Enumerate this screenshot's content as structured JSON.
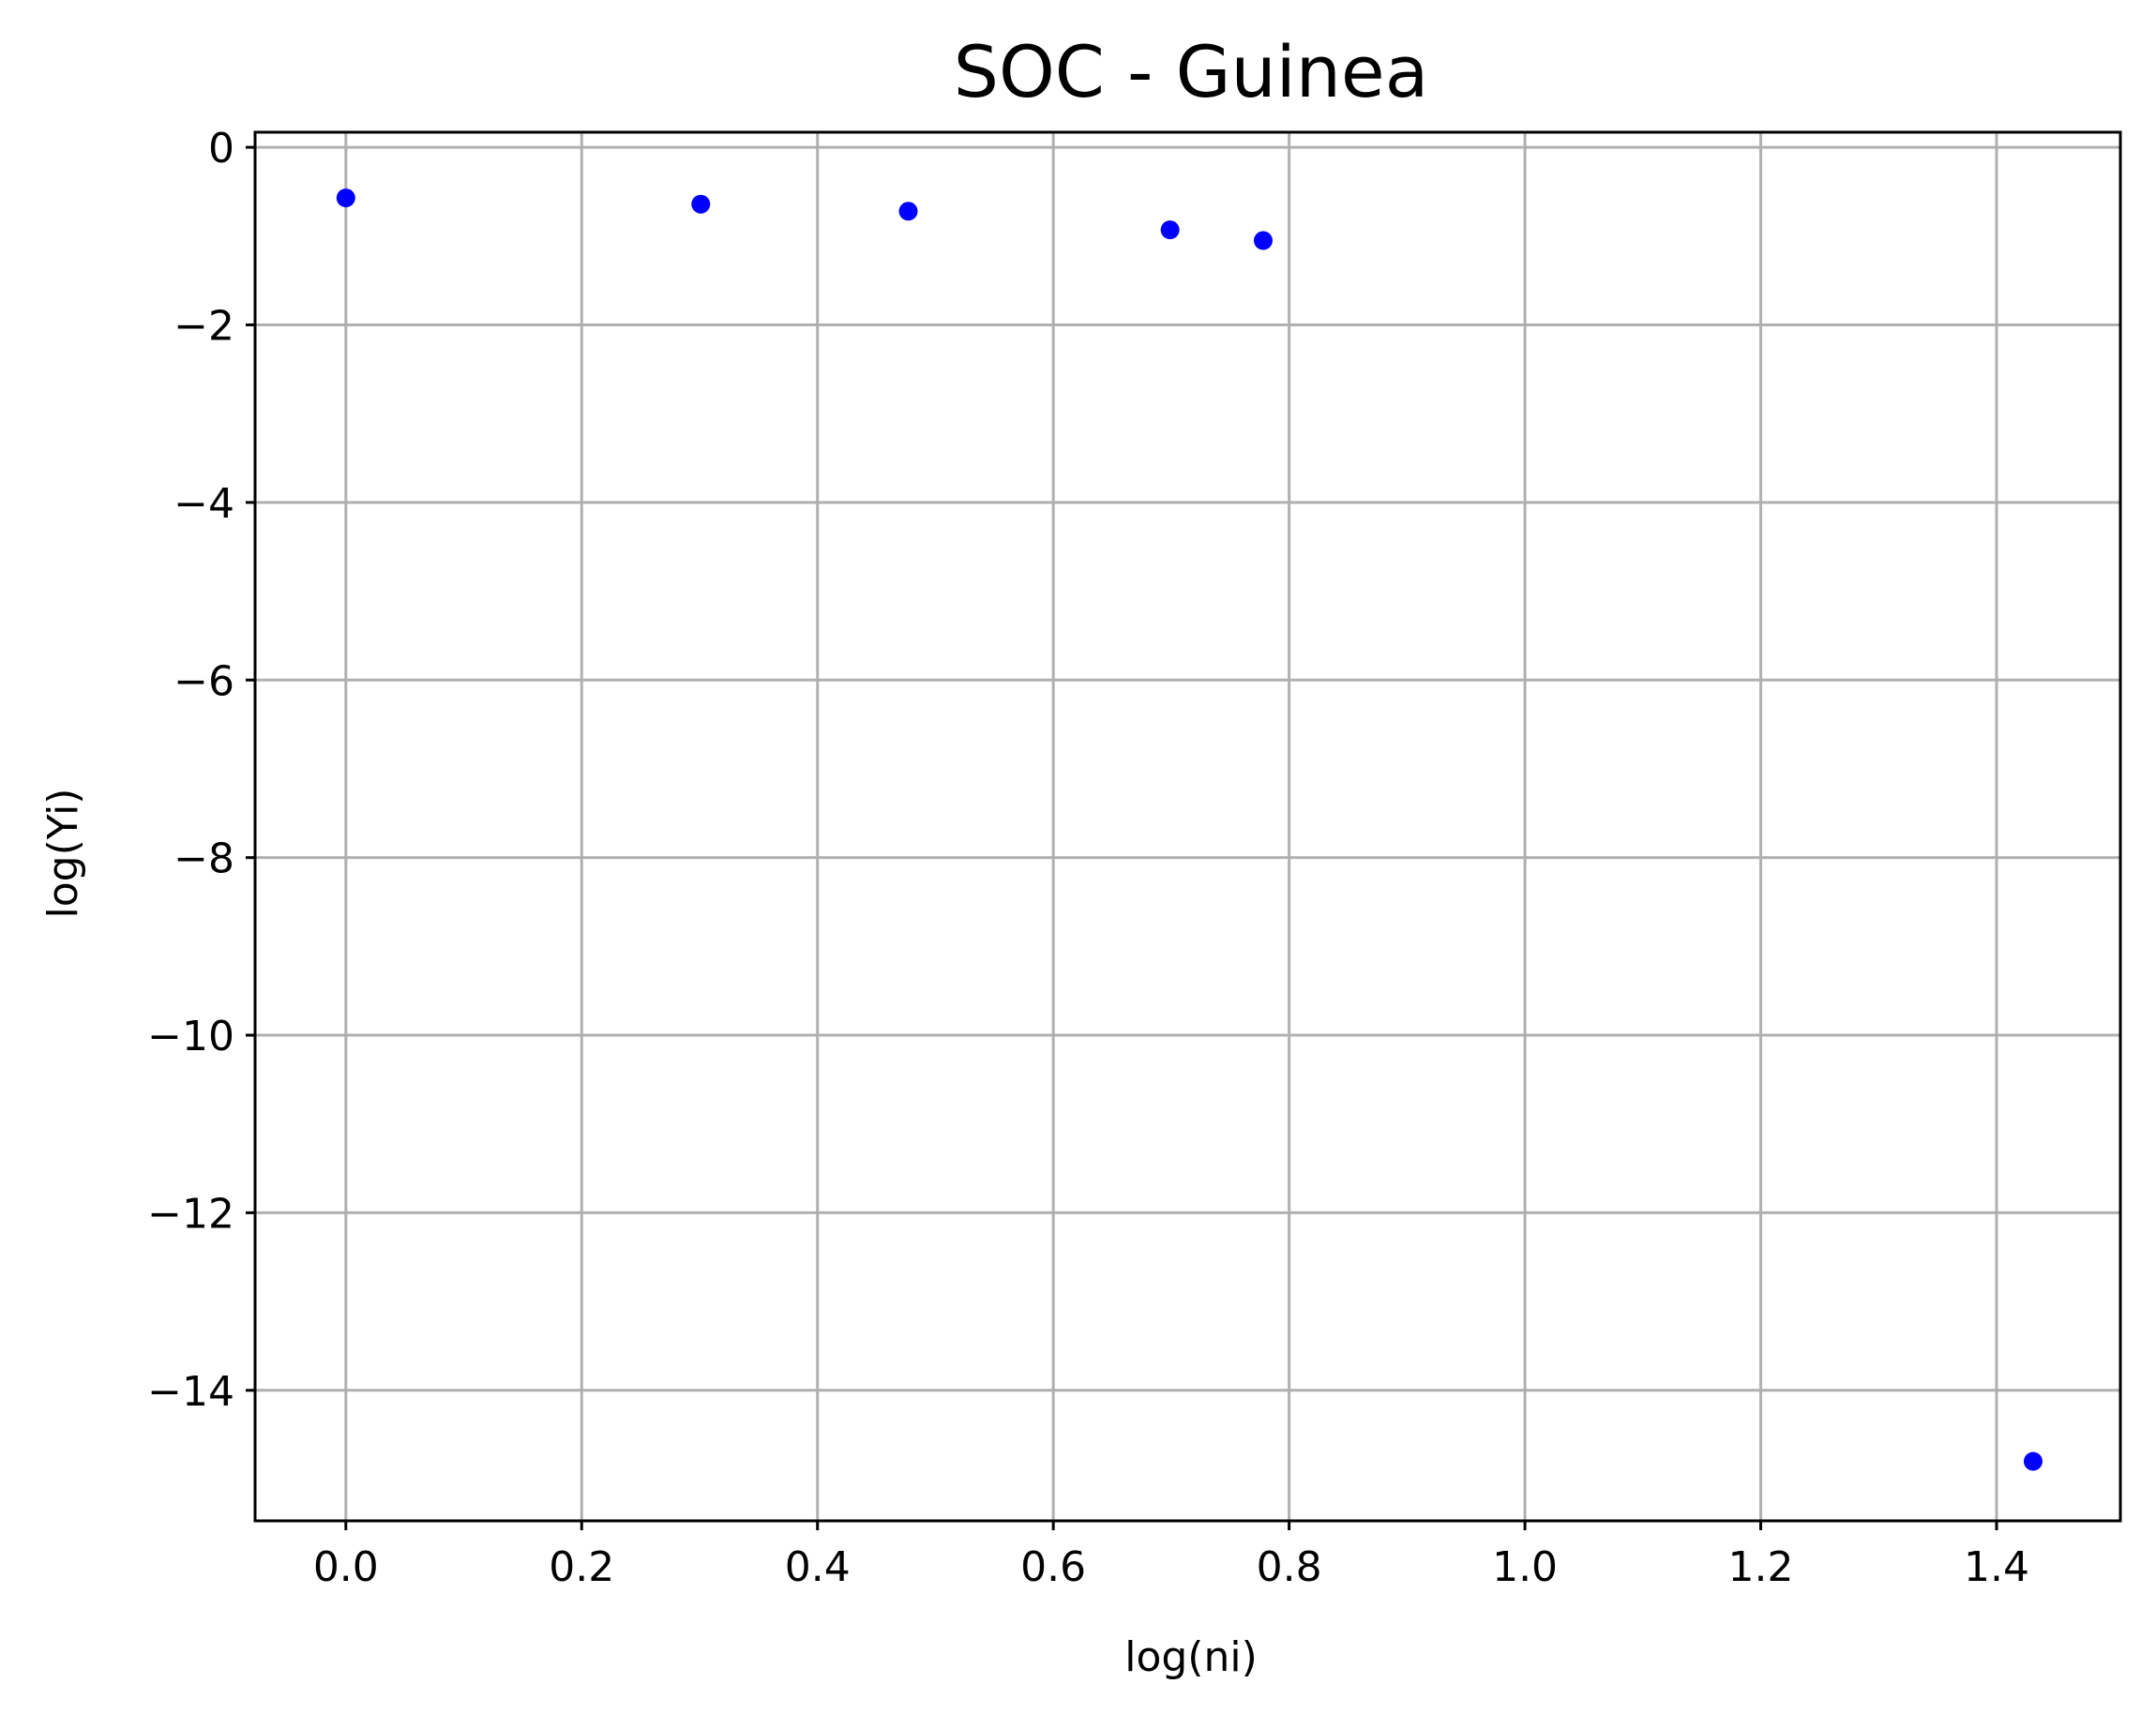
{
  "chart_data": {
    "type": "scatter",
    "title": "SOC - Guinea",
    "xlabel": "log(ni)",
    "ylabel": "log(Yi)",
    "xlim": [
      -0.077,
      1.505
    ],
    "ylim": [
      -15.47,
      0.17
    ],
    "x_ticks": [
      {
        "value": 0.0,
        "label": "0.0"
      },
      {
        "value": 0.2,
        "label": "0.2"
      },
      {
        "value": 0.4,
        "label": "0.4"
      },
      {
        "value": 0.6,
        "label": "0.6"
      },
      {
        "value": 0.8,
        "label": "0.8"
      },
      {
        "value": 1.0,
        "label": "1.0"
      },
      {
        "value": 1.2,
        "label": "1.2"
      },
      {
        "value": 1.4,
        "label": "1.4"
      }
    ],
    "y_ticks": [
      {
        "value": 0,
        "label": "0"
      },
      {
        "value": -2,
        "label": "−2"
      },
      {
        "value": -4,
        "label": "−4"
      },
      {
        "value": -6,
        "label": "−6"
      },
      {
        "value": -8,
        "label": "−8"
      },
      {
        "value": -10,
        "label": "−10"
      },
      {
        "value": -12,
        "label": "−12"
      },
      {
        "value": -14,
        "label": "−14"
      }
    ],
    "grid": true,
    "marker_color": "#0000ff",
    "points": [
      {
        "x": 0.0,
        "y": -0.57
      },
      {
        "x": 0.301,
        "y": -0.64
      },
      {
        "x": 0.477,
        "y": -0.72
      },
      {
        "x": 0.699,
        "y": -0.93
      },
      {
        "x": 0.778,
        "y": -1.05
      },
      {
        "x": 1.431,
        "y": -14.8
      }
    ]
  }
}
